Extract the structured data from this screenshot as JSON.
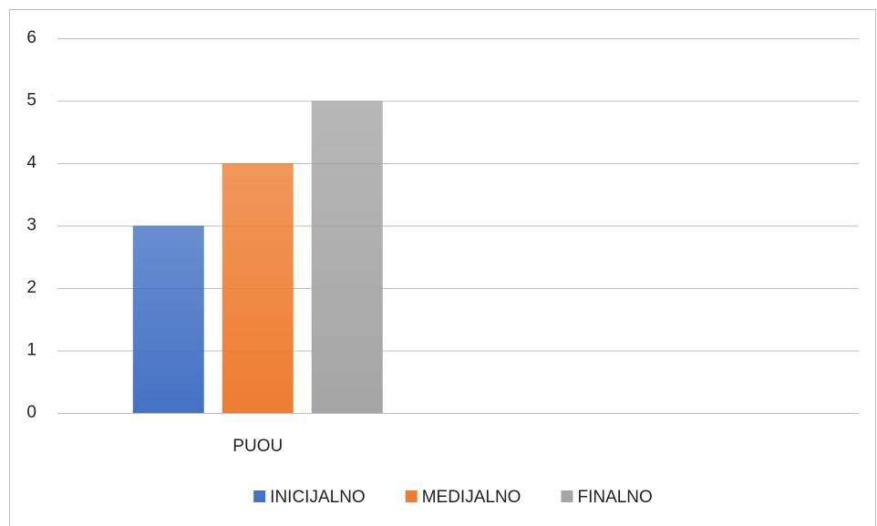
{
  "chart_data": {
    "type": "bar",
    "categories": [
      "PUOU",
      null
    ],
    "series": [
      {
        "name": "INICIJALNO",
        "color": "#4472c4",
        "values": [
          3,
          null
        ]
      },
      {
        "name": "MEDIJALNO",
        "color": "#ed7d31",
        "values": [
          4,
          null
        ]
      },
      {
        "name": "FINALNO",
        "color": "#a5a5a5",
        "values": [
          5,
          null
        ]
      }
    ],
    "ylim": [
      0,
      6
    ],
    "yticks": [
      0,
      1,
      2,
      3,
      4,
      5,
      6
    ],
    "grid": true,
    "legend": "bottom"
  }
}
